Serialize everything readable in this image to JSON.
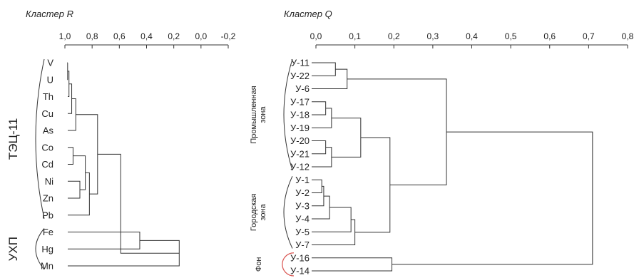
{
  "chart_data": [
    {
      "type": "dendrogram",
      "title": "Кластер R",
      "axis": {
        "reversed": true,
        "range": [
          1.0,
          -0.2
        ],
        "ticks": [
          "1,0",
          "0,8",
          "0,6",
          "0,4",
          "0,2",
          "0,0",
          "-0,2"
        ],
        "tick_values": [
          1.0,
          0.8,
          0.6,
          0.4,
          0.2,
          0.0,
          -0.2
        ]
      },
      "leaves": [
        "V",
        "U",
        "Th",
        "Cu",
        "As",
        "Co",
        "Cd",
        "Ni",
        "Zn",
        "Pb",
        "Fe",
        "Hg",
        "Mn"
      ],
      "groups": [
        {
          "label": "ТЭЦ-11",
          "leaves": [
            "V",
            "U",
            "Th",
            "Cu",
            "As",
            "Co",
            "Cd",
            "Ni",
            "Zn",
            "Pb"
          ]
        },
        {
          "label": "УХП",
          "leaves": [
            "Fe",
            "Hg",
            "Mn"
          ]
        }
      ],
      "merges": [
        {
          "a": "V",
          "b": "U",
          "height": 0.98
        },
        {
          "a": "m0",
          "b": "Th",
          "height": 0.97
        },
        {
          "a": "m1",
          "b": "Cu",
          "height": 0.95
        },
        {
          "a": "m2",
          "b": "As",
          "height": 0.92
        },
        {
          "a": "Co",
          "b": "Cd",
          "height": 0.94
        },
        {
          "a": "Ni",
          "b": "Zn",
          "height": 0.89
        },
        {
          "a": "m4",
          "b": "m5",
          "height": 0.85
        },
        {
          "a": "m6",
          "b": "Pb",
          "height": 0.82
        },
        {
          "a": "m3",
          "b": "m7",
          "height": 0.76
        },
        {
          "a": "Fe",
          "b": "Hg",
          "height": 0.45
        },
        {
          "a": "m9",
          "b": "Mn",
          "height": 0.16
        },
        {
          "a": "m8",
          "b": "m10",
          "height": 0.59
        }
      ]
    },
    {
      "type": "dendrogram",
      "title": "Кластер Q",
      "axis": {
        "reversed": false,
        "range": [
          0.0,
          0.8
        ],
        "ticks": [
          "0,0",
          "0,1",
          "0,2",
          "0,3",
          "0,4",
          "0,5",
          "0,6",
          "0,7",
          "0,8"
        ],
        "tick_values": [
          0.0,
          0.1,
          0.2,
          0.3,
          0.4,
          0.5,
          0.6,
          0.7,
          0.8
        ]
      },
      "leaves": [
        "У-11",
        "У-22",
        "У-6",
        "У-17",
        "У-18",
        "У-19",
        "У-20",
        "У-21",
        "У-12",
        "У-1",
        "У-2",
        "У-3",
        "У-4",
        "У-5",
        "У-7",
        "У-16",
        "У-14"
      ],
      "groups": [
        {
          "label": "Промышленная зона",
          "lines": [
            "Промышленная",
            "зона"
          ],
          "leaves": [
            "У-11",
            "У-22",
            "У-6",
            "У-17",
            "У-18",
            "У-19",
            "У-20",
            "У-21",
            "У-12"
          ]
        },
        {
          "label": "Городская зона",
          "lines": [
            "Городская",
            "зона"
          ],
          "leaves": [
            "У-1",
            "У-2",
            "У-3",
            "У-4",
            "У-5",
            "У-7"
          ]
        },
        {
          "label": "Фон",
          "lines": [
            "Фон"
          ],
          "leaves": [
            "У-16",
            "У-14"
          ],
          "highlight_color": "#d9534f"
        }
      ],
      "merges": [
        {
          "a": "У-11",
          "b": "У-22",
          "height": 0.05
        },
        {
          "a": "m0",
          "b": "У-6",
          "height": 0.08
        },
        {
          "a": "У-17",
          "b": "У-18",
          "height": 0.025
        },
        {
          "a": "m2",
          "b": "У-19",
          "height": 0.04
        },
        {
          "a": "У-20",
          "b": "У-21",
          "height": 0.025
        },
        {
          "a": "m4",
          "b": "У-12",
          "height": 0.04
        },
        {
          "a": "m3",
          "b": "m5",
          "height": 0.115
        },
        {
          "a": "У-1",
          "b": "У-2",
          "height": 0.015
        },
        {
          "a": "m7",
          "b": "У-3",
          "height": 0.02
        },
        {
          "a": "m8",
          "b": "У-4",
          "height": 0.035
        },
        {
          "a": "m9",
          "b": "У-5",
          "height": 0.09
        },
        {
          "a": "m10",
          "b": "У-7",
          "height": 0.1
        },
        {
          "a": "m6",
          "b": "m11",
          "height": 0.19
        },
        {
          "a": "m1",
          "b": "m12",
          "height": 0.335
        },
        {
          "a": "У-16",
          "b": "У-14",
          "height": 0.195
        },
        {
          "a": "m13",
          "b": "m14",
          "height": 0.71
        }
      ]
    }
  ]
}
